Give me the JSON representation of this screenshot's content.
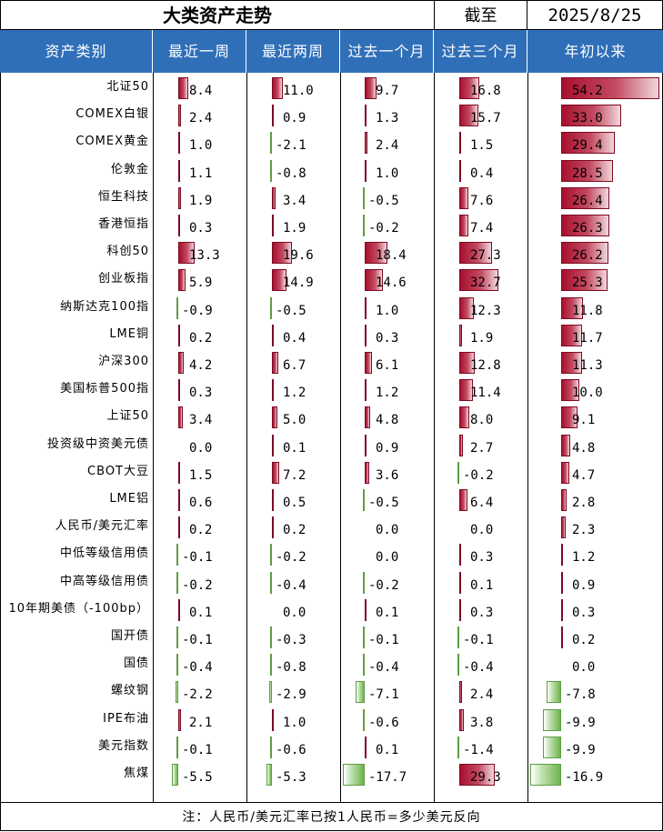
{
  "title": "大类资产走势",
  "as_of_label": "截至",
  "as_of_date": "2025/8/25",
  "headers": [
    "资产类别",
    "最近一周",
    "最近两周",
    "过去一个月",
    "过去三个月",
    "年初以来"
  ],
  "footnote": "注：人民币/美元汇率已按1人民币=多少美元反向",
  "colors": {
    "header_bg": "#2f6fb8",
    "positive_bar": "#a80f2e",
    "negative_bar": "#6fb34e"
  },
  "rows": [
    {
      "name": "北证50",
      "values": [
        "8.4",
        "11.0",
        "9.7",
        "16.8",
        "54.2"
      ]
    },
    {
      "name": "COMEX白银",
      "values": [
        "2.4",
        "0.9",
        "1.3",
        "15.7",
        "33.0"
      ]
    },
    {
      "name": "COMEX黄金",
      "values": [
        "1.0",
        "-2.1",
        "2.4",
        "1.5",
        "29.4"
      ]
    },
    {
      "name": "伦敦金",
      "values": [
        "1.1",
        "-0.8",
        "1.0",
        "0.4",
        "28.5"
      ]
    },
    {
      "name": "恒生科技",
      "values": [
        "1.9",
        "3.4",
        "-0.5",
        "7.6",
        "26.4"
      ]
    },
    {
      "name": "香港恒指",
      "values": [
        "0.3",
        "1.9",
        "-0.2",
        "7.4",
        "26.3"
      ]
    },
    {
      "name": "科创50",
      "values": [
        "13.3",
        "19.6",
        "18.4",
        "27.3",
        "26.2"
      ]
    },
    {
      "name": "创业板指",
      "values": [
        "5.9",
        "14.9",
        "14.6",
        "32.7",
        "25.3"
      ]
    },
    {
      "name": "纳斯达克100指",
      "values": [
        "-0.9",
        "-0.5",
        "1.0",
        "12.3",
        "11.8"
      ]
    },
    {
      "name": "LME铜",
      "values": [
        "0.2",
        "0.4",
        "0.3",
        "1.9",
        "11.7"
      ]
    },
    {
      "name": "沪深300",
      "values": [
        "4.2",
        "6.7",
        "6.1",
        "12.8",
        "11.3"
      ]
    },
    {
      "name": "美国标普500指",
      "values": [
        "0.3",
        "1.2",
        "1.2",
        "11.4",
        "10.0"
      ]
    },
    {
      "name": "上证50",
      "values": [
        "3.4",
        "5.0",
        "4.8",
        "8.0",
        "9.1"
      ]
    },
    {
      "name": "投资级中资美元债",
      "values": [
        "0.0",
        "0.1",
        "0.9",
        "2.7",
        "4.8"
      ]
    },
    {
      "name": "CBOT大豆",
      "values": [
        "1.5",
        "7.2",
        "3.6",
        "-0.2",
        "4.7"
      ]
    },
    {
      "name": "LME铝",
      "values": [
        "0.6",
        "0.5",
        "-0.5",
        "6.4",
        "2.8"
      ]
    },
    {
      "name": "人民币/美元汇率",
      "values": [
        "0.2",
        "0.2",
        "0.0",
        "0.0",
        "2.3"
      ]
    },
    {
      "name": "中低等级信用债",
      "values": [
        "-0.1",
        "-0.2",
        "0.0",
        "0.3",
        "1.2"
      ]
    },
    {
      "name": "中高等级信用债",
      "values": [
        "-0.2",
        "-0.4",
        "-0.2",
        "0.1",
        "0.9"
      ]
    },
    {
      "name": "10年期美债（-100bp）",
      "values": [
        "0.1",
        "0.0",
        "0.1",
        "0.3",
        "0.3"
      ]
    },
    {
      "name": "国开债",
      "values": [
        "-0.1",
        "-0.3",
        "-0.1",
        "-0.1",
        "0.2"
      ]
    },
    {
      "name": "国债",
      "values": [
        "-0.4",
        "-0.8",
        "-0.4",
        "-0.4",
        "0.0"
      ]
    },
    {
      "name": "螺纹钢",
      "values": [
        "-2.2",
        "-2.9",
        "-7.1",
        "2.4",
        "-7.8"
      ]
    },
    {
      "name": "IPE布油",
      "values": [
        "2.1",
        "1.0",
        "-0.6",
        "3.8",
        "-9.9"
      ]
    },
    {
      "name": "美元指数",
      "values": [
        "-0.1",
        "-0.6",
        "0.1",
        "-1.4",
        "-9.9"
      ]
    },
    {
      "name": "焦煤",
      "values": [
        "-5.5",
        "-5.3",
        "-17.7",
        "29.3",
        "-16.9"
      ]
    }
  ]
}
